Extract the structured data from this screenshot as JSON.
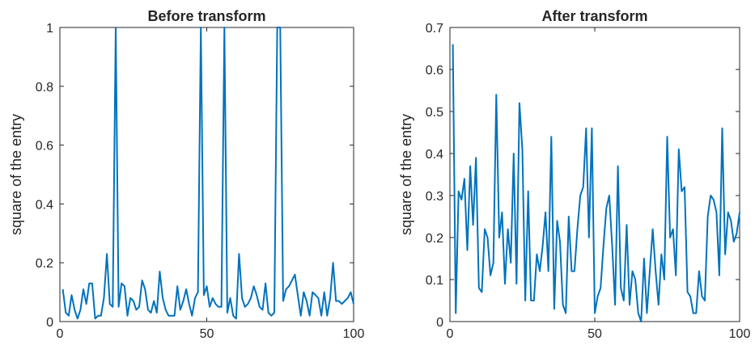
{
  "chart_data": [
    {
      "type": "line",
      "title": "Before transform",
      "xlabel": "",
      "ylabel": "square of the entry",
      "xlim": [
        0,
        100
      ],
      "ylim": [
        0,
        1
      ],
      "xticks": [
        0,
        50,
        100
      ],
      "yticks": [
        0,
        0.2,
        0.4,
        0.6,
        0.8,
        1
      ],
      "ytick_labels": [
        "0",
        "0.2",
        "0.4",
        "0.6",
        "0.8",
        "1"
      ],
      "grid": false,
      "color": "#0072BD",
      "x": [
        1,
        2,
        3,
        4,
        5,
        6,
        7,
        8,
        9,
        10,
        11,
        12,
        13,
        14,
        15,
        16,
        17,
        18,
        19,
        20,
        21,
        22,
        23,
        24,
        25,
        26,
        27,
        28,
        29,
        30,
        31,
        32,
        33,
        34,
        35,
        36,
        37,
        38,
        39,
        40,
        41,
        42,
        43,
        44,
        45,
        46,
        47,
        48,
        49,
        50,
        51,
        52,
        53,
        54,
        55,
        56,
        57,
        58,
        59,
        60,
        61,
        62,
        63,
        64,
        65,
        66,
        67,
        68,
        69,
        70,
        71,
        72,
        73,
        74,
        75,
        76,
        77,
        78,
        79,
        80,
        81,
        82,
        83,
        84,
        85,
        86,
        87,
        88,
        89,
        90,
        91,
        92,
        93,
        94,
        95,
        96,
        97,
        98,
        99,
        100
      ],
      "y": [
        0.11,
        0.03,
        0.02,
        0.09,
        0.04,
        0.01,
        0.04,
        0.11,
        0.06,
        0.13,
        0.13,
        0.01,
        0.02,
        0.02,
        0.08,
        0.23,
        0.06,
        0.05,
        1.0,
        0.05,
        0.13,
        0.12,
        0.02,
        0.08,
        0.07,
        0.04,
        0.05,
        0.14,
        0.11,
        0.04,
        0.03,
        0.07,
        0.03,
        0.17,
        0.08,
        0.04,
        0.02,
        0.02,
        0.02,
        0.12,
        0.04,
        0.07,
        0.11,
        0.06,
        0.02,
        0.08,
        0.1,
        1.0,
        0.09,
        0.12,
        0.05,
        0.08,
        0.06,
        0.05,
        0.05,
        1.0,
        0.03,
        0.08,
        0.02,
        0.01,
        0.23,
        0.08,
        0.05,
        0.06,
        0.08,
        0.12,
        0.09,
        0.05,
        0.04,
        0.13,
        0.03,
        0.02,
        0.03,
        1.0,
        1.0,
        0.07,
        0.11,
        0.12,
        0.14,
        0.16,
        0.09,
        0.02,
        0.1,
        0.07,
        0.02,
        0.1,
        0.09,
        0.08,
        0.02,
        0.1,
        0.02,
        0.08,
        0.2,
        0.07,
        0.07,
        0.06,
        0.07,
        0.08,
        0.1,
        0.06
      ]
    },
    {
      "type": "line",
      "title": "After transform",
      "xlabel": "",
      "ylabel": "square of the entry",
      "xlim": [
        0,
        100
      ],
      "ylim": [
        0,
        0.7
      ],
      "xticks": [
        0,
        50,
        100
      ],
      "yticks": [
        0,
        0.1,
        0.2,
        0.3,
        0.4,
        0.5,
        0.6,
        0.7
      ],
      "ytick_labels": [
        "0",
        "0.1",
        "0.2",
        "0.3",
        "0.4",
        "0.5",
        "0.6",
        "0.7"
      ],
      "grid": false,
      "color": "#0072BD",
      "x": [
        1,
        2,
        3,
        4,
        5,
        6,
        7,
        8,
        9,
        10,
        11,
        12,
        13,
        14,
        15,
        16,
        17,
        18,
        19,
        20,
        21,
        22,
        23,
        24,
        25,
        26,
        27,
        28,
        29,
        30,
        31,
        32,
        33,
        34,
        35,
        36,
        37,
        38,
        39,
        40,
        41,
        42,
        43,
        44,
        45,
        46,
        47,
        48,
        49,
        50,
        51,
        52,
        53,
        54,
        55,
        56,
        57,
        58,
        59,
        60,
        61,
        62,
        63,
        64,
        65,
        66,
        67,
        68,
        69,
        70,
        71,
        72,
        73,
        74,
        75,
        76,
        77,
        78,
        79,
        80,
        81,
        82,
        83,
        84,
        85,
        86,
        87,
        88,
        89,
        90,
        91,
        92,
        93,
        94,
        95,
        96,
        97,
        98,
        99,
        100
      ],
      "y": [
        0.66,
        0.02,
        0.31,
        0.29,
        0.34,
        0.17,
        0.37,
        0.23,
        0.39,
        0.08,
        0.07,
        0.22,
        0.2,
        0.11,
        0.14,
        0.54,
        0.2,
        0.26,
        0.09,
        0.22,
        0.14,
        0.4,
        0.09,
        0.52,
        0.41,
        0.05,
        0.31,
        0.05,
        0.05,
        0.16,
        0.12,
        0.18,
        0.26,
        0.12,
        0.44,
        0.03,
        0.24,
        0.19,
        0.04,
        0.02,
        0.25,
        0.12,
        0.12,
        0.22,
        0.3,
        0.32,
        0.46,
        0.2,
        0.46,
        0.02,
        0.06,
        0.08,
        0.18,
        0.27,
        0.3,
        0.18,
        0.04,
        0.37,
        0.08,
        0.05,
        0.23,
        0.04,
        0.12,
        0.1,
        0.02,
        0.0,
        0.15,
        0.02,
        0.12,
        0.22,
        0.12,
        0.04,
        0.16,
        0.1,
        0.44,
        0.2,
        0.22,
        0.11,
        0.41,
        0.31,
        0.32,
        0.07,
        0.06,
        0.02,
        0.02,
        0.12,
        0.06,
        0.05,
        0.25,
        0.3,
        0.29,
        0.26,
        0.11,
        0.46,
        0.16,
        0.26,
        0.24,
        0.19,
        0.21,
        0.26
      ]
    }
  ]
}
